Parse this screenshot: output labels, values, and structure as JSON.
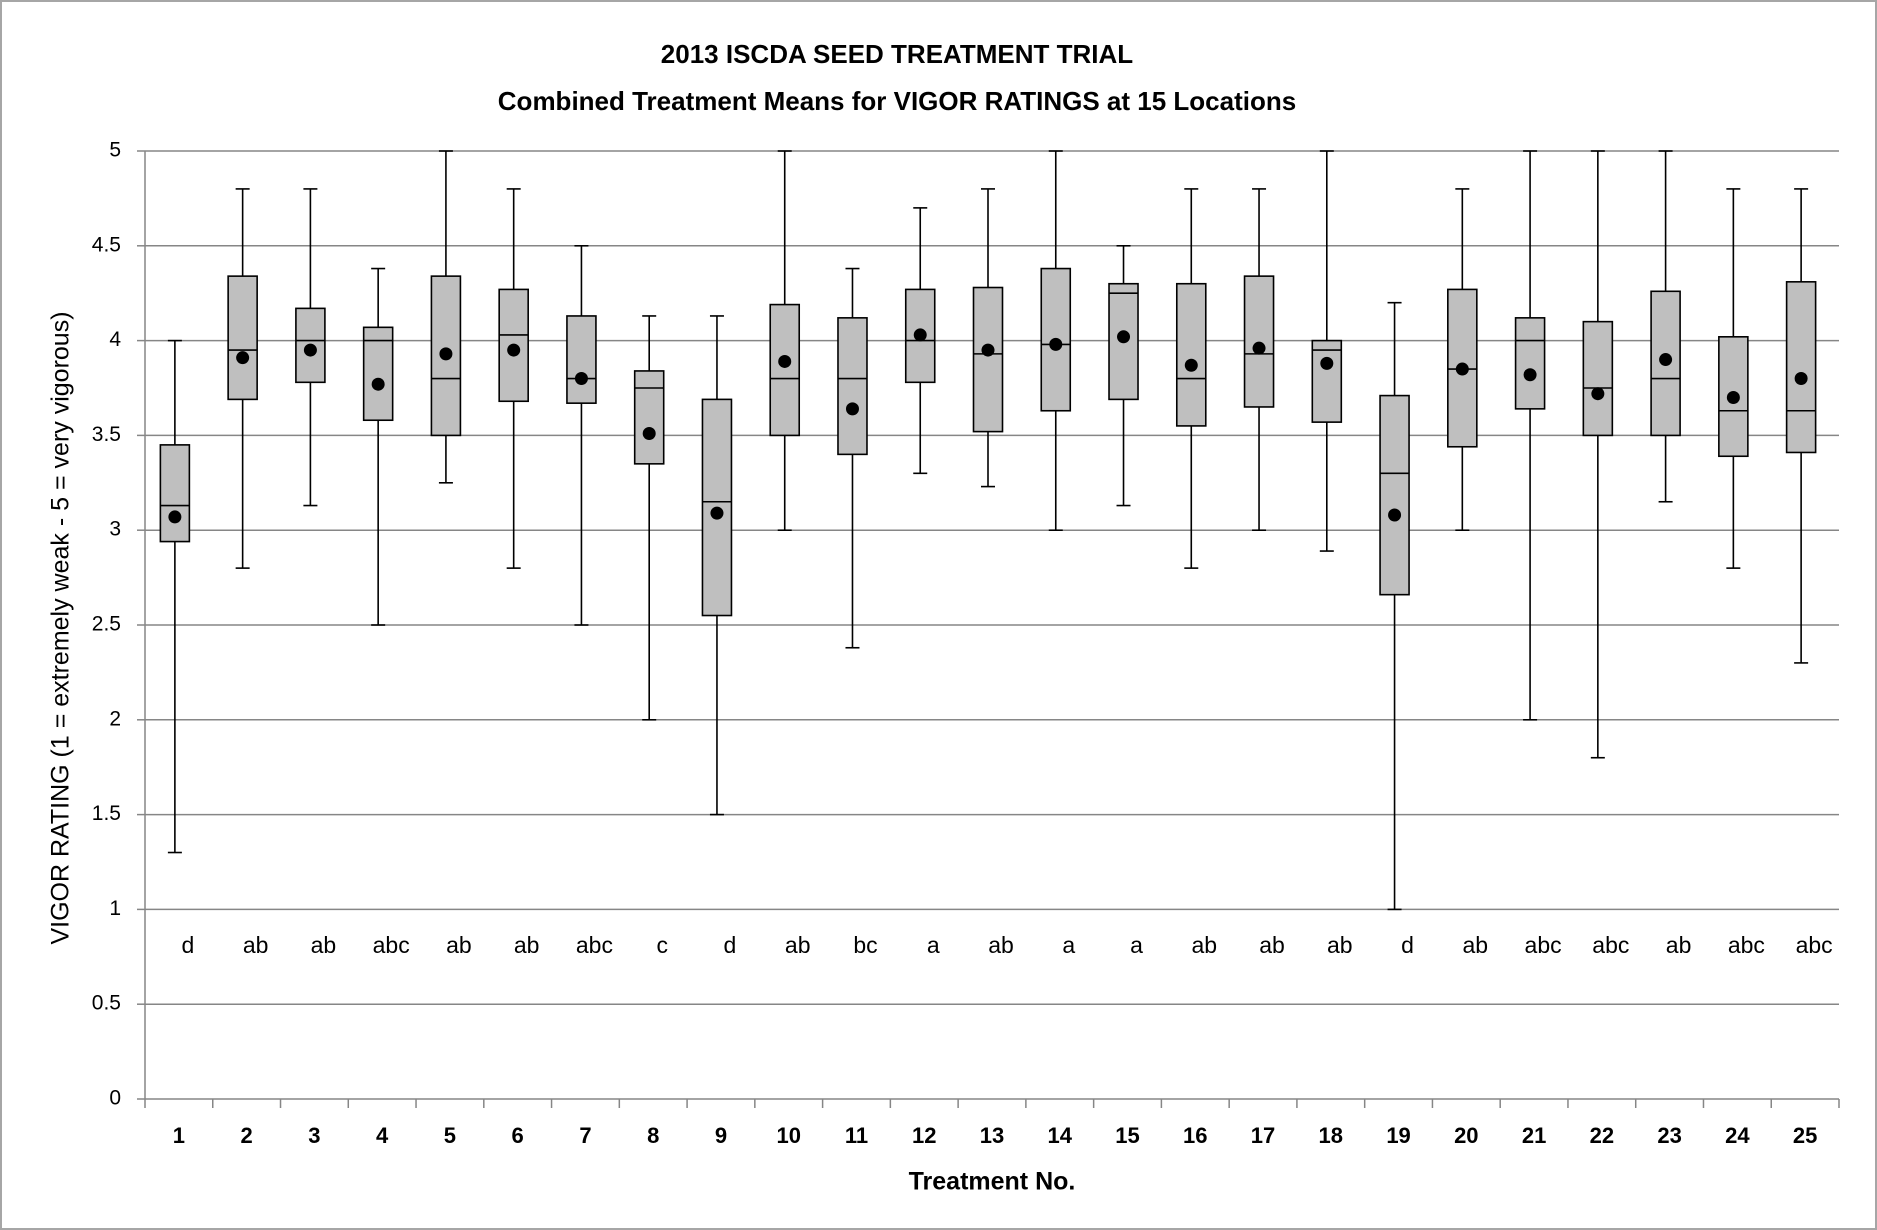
{
  "chart_data": {
    "type": "box",
    "title": "2013 ISCDA SEED TREATMENT TRIAL",
    "subtitle": "Combined Treatment Means for VIGOR RATINGS at 15 Locations",
    "x_label": "Treatment No.",
    "y_label": "VIGOR RATING  (1 = extremely weak - 5 = very vigorous)",
    "categories": [
      "1",
      "2",
      "3",
      "4",
      "5",
      "6",
      "7",
      "8",
      "9",
      "10",
      "11",
      "12",
      "13",
      "14",
      "15",
      "16",
      "17",
      "18",
      "19",
      "20",
      "21",
      "22",
      "23",
      "24",
      "25"
    ],
    "min": [
      1.3,
      2.8,
      3.13,
      2.5,
      3.25,
      2.8,
      2.5,
      2.0,
      1.5,
      3.0,
      2.38,
      3.3,
      3.23,
      3.0,
      3.13,
      2.8,
      3.0,
      2.89,
      1.0,
      3.0,
      2.0,
      1.8,
      3.15,
      2.8,
      2.3
    ],
    "q1": [
      2.94,
      3.69,
      3.78,
      3.58,
      3.5,
      3.68,
      3.67,
      3.35,
      2.55,
      3.5,
      3.4,
      3.78,
      3.52,
      3.63,
      3.69,
      3.55,
      3.65,
      3.57,
      2.66,
      3.44,
      3.64,
      3.5,
      3.5,
      3.39,
      3.41
    ],
    "median": [
      3.13,
      3.95,
      4.0,
      4.0,
      3.8,
      4.03,
      3.8,
      3.75,
      3.15,
      3.8,
      3.8,
      4.0,
      3.93,
      3.98,
      4.25,
      3.8,
      3.93,
      3.95,
      3.3,
      3.85,
      4.0,
      3.75,
      3.8,
      3.63,
      3.63
    ],
    "q3": [
      3.45,
      4.34,
      4.17,
      4.07,
      4.34,
      4.27,
      4.13,
      3.84,
      3.69,
      4.19,
      4.12,
      4.27,
      4.28,
      4.38,
      4.3,
      4.3,
      4.34,
      4.0,
      3.71,
      4.27,
      4.12,
      4.1,
      4.26,
      4.02,
      4.31
    ],
    "max": [
      4.0,
      4.8,
      4.8,
      4.38,
      5.0,
      4.8,
      4.5,
      4.13,
      4.13,
      5.0,
      4.38,
      4.7,
      4.8,
      5.0,
      4.5,
      4.8,
      4.8,
      5.0,
      4.2,
      4.8,
      5.0,
      5.0,
      5.0,
      4.8,
      4.8
    ],
    "mean": [
      3.07,
      3.91,
      3.95,
      3.77,
      3.93,
      3.95,
      3.8,
      3.51,
      3.09,
      3.89,
      3.64,
      4.03,
      3.95,
      3.98,
      4.02,
      3.87,
      3.96,
      3.88,
      3.08,
      3.85,
      3.82,
      3.72,
      3.9,
      3.7,
      3.8
    ],
    "letters": [
      "d",
      "ab",
      "ab",
      "abc",
      "ab",
      "ab",
      "abc",
      "c",
      "d",
      "ab",
      "bc",
      "a",
      "ab",
      "a",
      "a",
      "ab",
      "ab",
      "ab",
      "d",
      "ab",
      "abc",
      "abc",
      "ab",
      "abc",
      "abc"
    ],
    "box_color": "#bfbfbf",
    "mean_color": "#000000",
    "ylim": [
      0,
      5
    ],
    "yticks": [
      0,
      0.5,
      1,
      1.5,
      2,
      2.5,
      3,
      3.5,
      4,
      4.5,
      5
    ],
    "grid": true
  }
}
